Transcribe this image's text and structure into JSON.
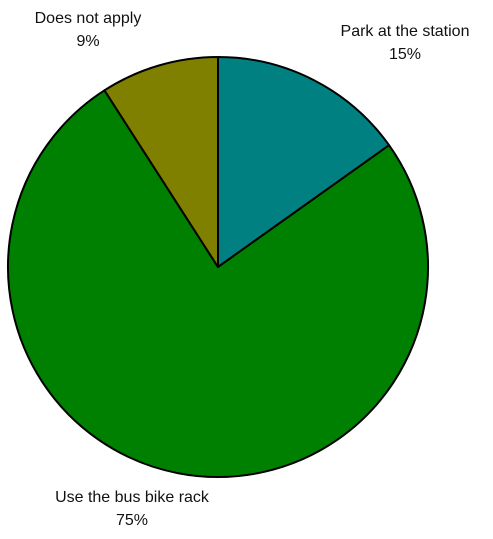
{
  "chart_data": {
    "type": "pie",
    "title": "",
    "start": "top",
    "direction": "clockwise",
    "legend": "none",
    "slices": [
      {
        "label": "Park at the station",
        "value": 15,
        "value_label": "15%",
        "color": "#008080"
      },
      {
        "label": "Use the bus bike rack",
        "value": 75,
        "value_label": "75%",
        "color": "#008000"
      },
      {
        "label": "Does not apply",
        "value": 9,
        "value_label": "9%",
        "color": "#808000"
      }
    ]
  }
}
